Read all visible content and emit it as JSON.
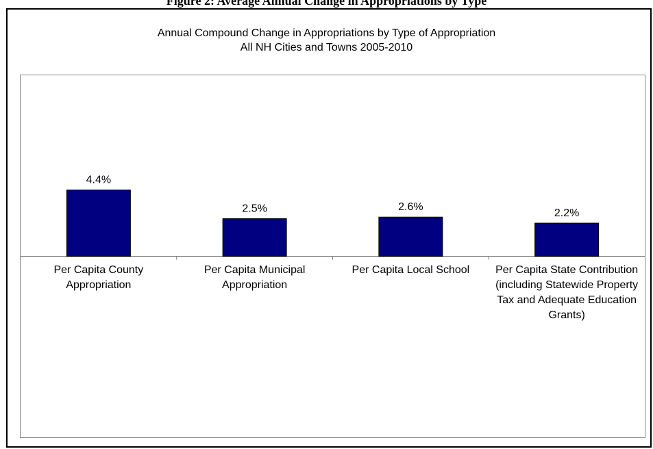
{
  "page_heading": "Figure 2: Average Annual Change in Appropriations by Type",
  "chart_data": {
    "type": "bar",
    "title": "Annual Compound Change in Appropriations by Type of Appropriation",
    "subtitle": "All NH Cities and Towns 2005-2010",
    "categories": [
      "Per Capita County Appropriation",
      "Per Capita Municipal Appropriation",
      "Per Capita Local School",
      "Per Capita State Contribution (including Statewide Property Tax and Adequate Education Grants)"
    ],
    "values": [
      4.4,
      2.5,
      2.6,
      2.2
    ],
    "data_labels": [
      "4.4%",
      "2.5%",
      "2.6%",
      "2.2%"
    ],
    "ylim": [
      -12,
      12
    ],
    "grid": false,
    "legend": "none",
    "bar_color": "#000080",
    "xlabel": "",
    "ylabel": ""
  }
}
